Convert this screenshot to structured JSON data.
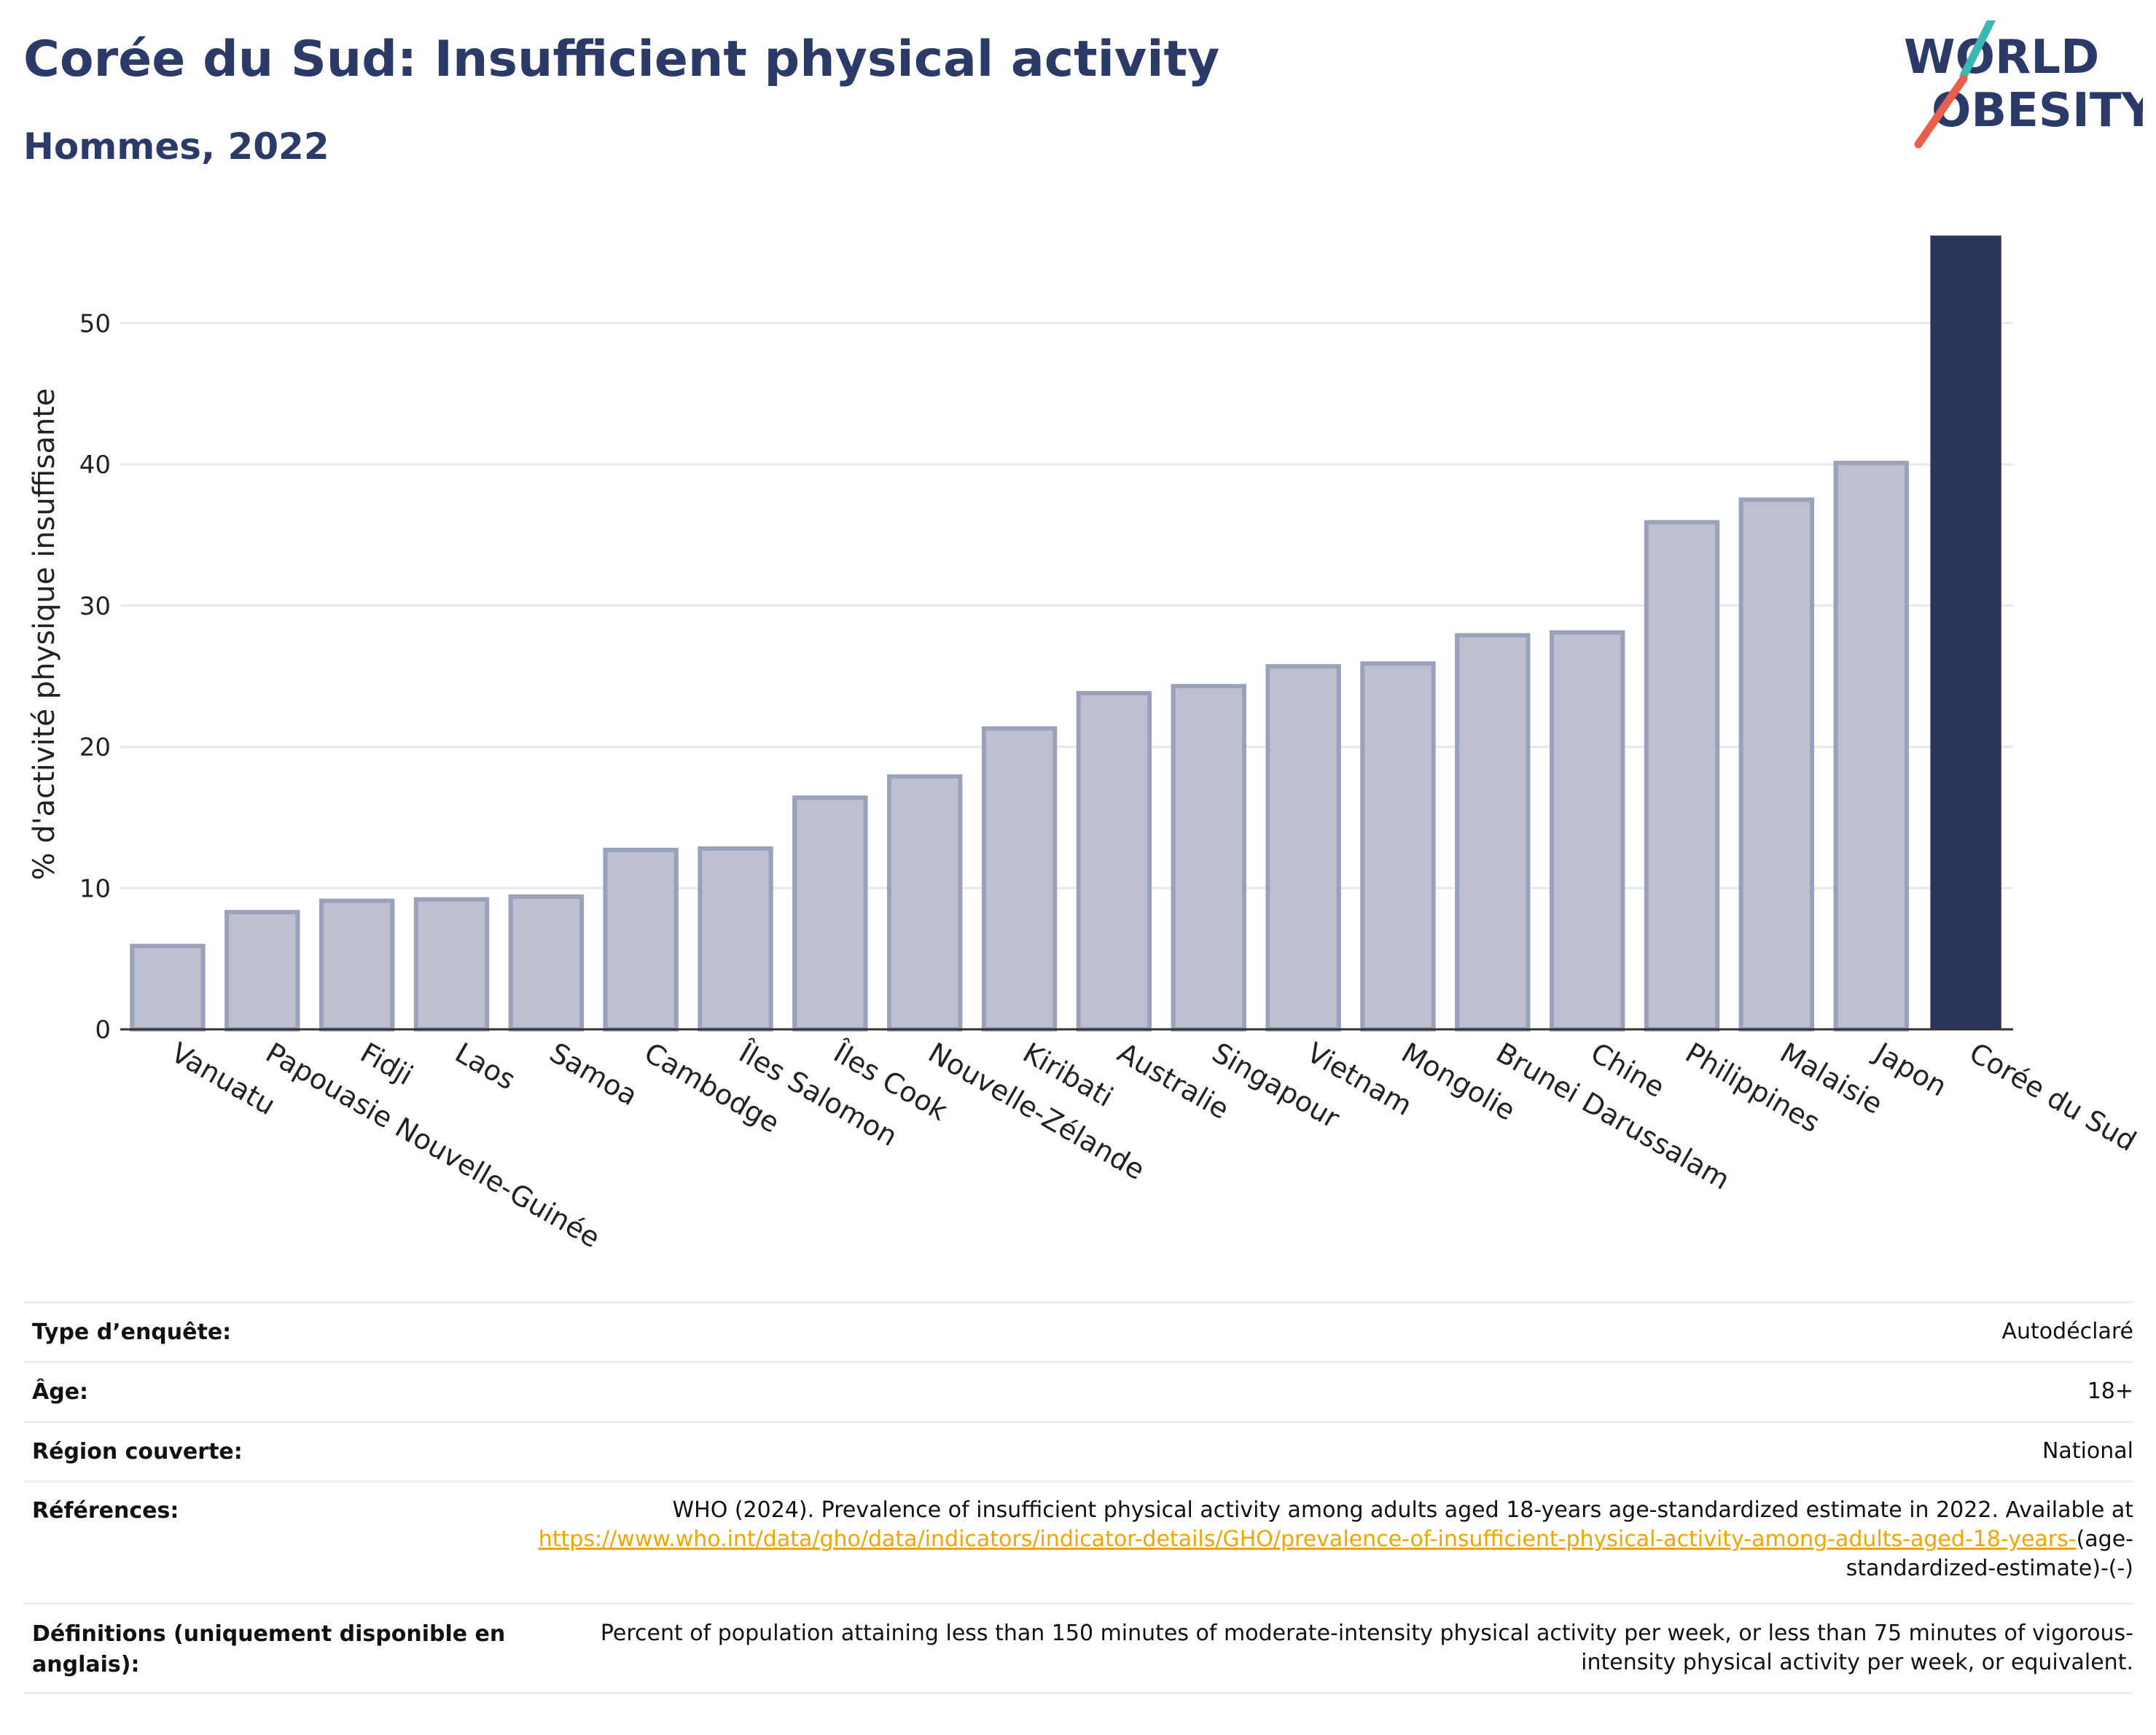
{
  "header": {
    "title": "Corée du Sud: Insufficient physical activity",
    "subtitle": "Hommes, 2022",
    "logo_text_line1": "WORLD",
    "logo_text_line2": "OBESITY"
  },
  "colors": {
    "title": "#2b3a67",
    "bar_default": "#bdc1cf",
    "bar_border": "#9aa1bb",
    "bar_highlight": "#2b365f",
    "link": "#f0a500",
    "logo_teal": "#3cb8b3",
    "logo_red": "#e8604c"
  },
  "chart_data": {
    "type": "bar",
    "title": "",
    "xlabel": "",
    "ylabel": "% d'activité physique insuffisante",
    "ylim": [
      0,
      56
    ],
    "yticks": [
      0,
      10,
      20,
      30,
      40,
      50
    ],
    "grid": true,
    "highlight": "Corée du Sud",
    "categories": [
      "Vanuatu",
      "Papouasie Nouvelle-Guinée",
      "Fidji",
      "Laos",
      "Samoa",
      "Cambodge",
      "Îles Salomon",
      "Îles Cook",
      "Nouvelle-Zélande",
      "Kiribati",
      "Australie",
      "Singapour",
      "Vietnam",
      "Mongolie",
      "Brunei Darussalam",
      "Chine",
      "Philippines",
      "Malaisie",
      "Japon",
      "Corée du Sud"
    ],
    "values": [
      5.9,
      8.3,
      9.1,
      9.2,
      9.4,
      12.7,
      12.8,
      16.4,
      17.9,
      21.3,
      23.8,
      24.3,
      25.7,
      25.9,
      27.9,
      28.1,
      35.9,
      37.5,
      40.1,
      56.2
    ]
  },
  "meta": {
    "survey_type_label": "Type d’enquête:",
    "survey_type_value": "Autodéclaré",
    "age_label": "Âge:",
    "age_value": "18+",
    "region_label": "Région couverte:",
    "region_value": "National",
    "references_label": "Références:",
    "references_text": "WHO (2024). Prevalence of insufficient physical activity among adults aged 18-years age-standardized estimate in 2022. Available at ",
    "references_link": "https://www.who.int/data/gho/data/indicators/indicator-details/GHO/prevalence-of-insufficient-physical-activity-among-adults-aged-18-years-",
    "references_suffix": "(age-standardized-estimate)-(-)",
    "definitions_label": "Définitions (uniquement disponible en anglais):",
    "definitions_value": "Percent of population attaining less than 150 minutes of moderate-intensity physical activity per week, or less than 75 minutes of vigorous-intensity physical activity per week, or equivalent."
  }
}
